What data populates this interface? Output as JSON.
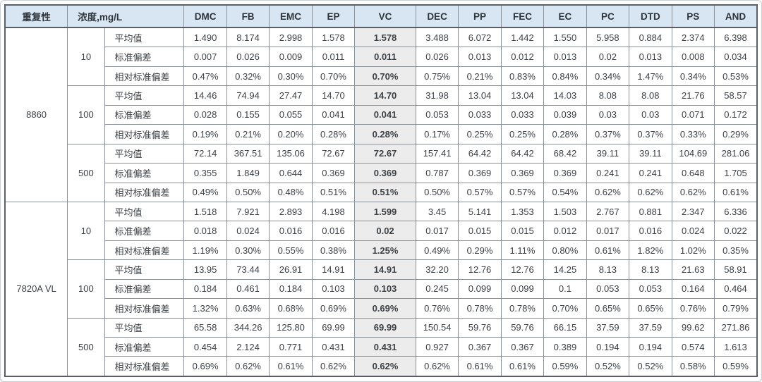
{
  "table": {
    "header": {
      "repeatability_label": "重复性",
      "concentration_label": "浓度,mg/L",
      "analytes": [
        "DMC",
        "FB",
        "EMC",
        "EP",
        "VC",
        "DEC",
        "PP",
        "FEC",
        "EC",
        "PC",
        "DTD",
        "PS",
        "AND"
      ],
      "highlight_analyte": "VC"
    },
    "metric_labels": [
      "平均值",
      "标准偏差",
      "相对标准偏差"
    ],
    "groups": [
      {
        "instrument": "8860",
        "levels": [
          {
            "concentration": "10",
            "rows": [
              [
                "1.490",
                "8.174",
                "2.998",
                "1.578",
                "1.578",
                "3.488",
                "6.072",
                "1.442",
                "1.550",
                "5.958",
                "0.884",
                "2.374",
                "6.398"
              ],
              [
                "0.007",
                "0.026",
                "0.009",
                "0.011",
                "0.011",
                "0.026",
                "0.013",
                "0.012",
                "0.013",
                "0.02",
                "0.013",
                "0.008",
                "0.034"
              ],
              [
                "0.47%",
                "0.32%",
                "0.30%",
                "0.70%",
                "0.70%",
                "0.75%",
                "0.21%",
                "0.83%",
                "0.84%",
                "0.34%",
                "1.47%",
                "0.34%",
                "0.53%"
              ]
            ]
          },
          {
            "concentration": "100",
            "rows": [
              [
                "14.46",
                "74.94",
                "27.47",
                "14.70",
                "14.70",
                "31.98",
                "13.04",
                "13.04",
                "14.03",
                "8.08",
                "8.08",
                "21.76",
                "58.57"
              ],
              [
                "0.028",
                "0.155",
                "0.055",
                "0.041",
                "0.041",
                "0.053",
                "0.033",
                "0.033",
                "0.039",
                "0.03",
                "0.03",
                "0.071",
                "0.172"
              ],
              [
                "0.19%",
                "0.21%",
                "0.20%",
                "0.28%",
                "0.28%",
                "0.17%",
                "0.25%",
                "0.25%",
                "0.28%",
                "0.37%",
                "0.37%",
                "0.33%",
                "0.29%"
              ]
            ]
          },
          {
            "concentration": "500",
            "rows": [
              [
                "72.14",
                "367.51",
                "135.06",
                "72.67",
                "72.67",
                "157.41",
                "64.42",
                "64.42",
                "68.42",
                "39.11",
                "39.11",
                "104.69",
                "281.06"
              ],
              [
                "0.355",
                "1.849",
                "0.644",
                "0.369",
                "0.369",
                "0.787",
                "0.369",
                "0.369",
                "0.369",
                "0.241",
                "0.241",
                "0.648",
                "1.705"
              ],
              [
                "0.49%",
                "0.50%",
                "0.48%",
                "0.51%",
                "0.51%",
                "0.50%",
                "0.57%",
                "0.57%",
                "0.54%",
                "0.62%",
                "0.62%",
                "0.62%",
                "0.61%"
              ]
            ]
          }
        ]
      },
      {
        "instrument": "7820A VL",
        "levels": [
          {
            "concentration": "10",
            "rows": [
              [
                "1.518",
                "7.921",
                "2.893",
                "4.198",
                "1.599",
                "3.45",
                "5.141",
                "1.353",
                "1.503",
                "2.767",
                "0.881",
                "2.347",
                "6.336"
              ],
              [
                "0.018",
                "0.024",
                "0.016",
                "0.016",
                "0.02",
                "0.017",
                "0.015",
                "0.015",
                "0.012",
                "0.017",
                "0.016",
                "0.024",
                "0.022"
              ],
              [
                "1.19%",
                "0.30%",
                "0.55%",
                "0.38%",
                "1.25%",
                "0.49%",
                "0.29%",
                "1.11%",
                "0.80%",
                "0.61%",
                "1.82%",
                "1.02%",
                "0.35%"
              ]
            ]
          },
          {
            "concentration": "100",
            "rows": [
              [
                "13.95",
                "73.44",
                "26.91",
                "14.91",
                "14.91",
                "32.20",
                "12.76",
                "12.76",
                "14.25",
                "8.13",
                "8.13",
                "21.63",
                "58.91"
              ],
              [
                "0.184",
                "0.461",
                "0.184",
                "0.103",
                "0.103",
                "0.245",
                "0.099",
                "0.099",
                "0.1",
                "0.053",
                "0.053",
                "0.164",
                "0.464"
              ],
              [
                "1.32%",
                "0.63%",
                "0.68%",
                "0.69%",
                "0.69%",
                "0.76%",
                "0.78%",
                "0.78%",
                "0.70%",
                "0.65%",
                "0.65%",
                "0.76%",
                "0.79%"
              ]
            ]
          },
          {
            "concentration": "500",
            "rows": [
              [
                "65.58",
                "344.26",
                "125.80",
                "69.99",
                "69.99",
                "150.54",
                "59.76",
                "59.76",
                "66.15",
                "37.59",
                "37.59",
                "99.62",
                "271.86"
              ],
              [
                "0.454",
                "2.124",
                "0.771",
                "0.431",
                "0.431",
                "0.927",
                "0.367",
                "0.367",
                "0.389",
                "0.194",
                "0.194",
                "0.574",
                "1.613"
              ],
              [
                "0.69%",
                "0.62%",
                "0.61%",
                "0.62%",
                "0.62%",
                "0.62%",
                "0.61%",
                "0.61%",
                "0.59%",
                "0.52%",
                "0.52%",
                "0.58%",
                "0.59%"
              ]
            ]
          }
        ]
      }
    ]
  },
  "colors": {
    "header_bg": "#d7e6f2",
    "highlight_bg": "#ececec",
    "inner_border": "#8a9097",
    "outer_border": "#595f66",
    "text": "#3c4146"
  },
  "layout": {
    "col_widths": {
      "instrument": 88,
      "concentration": 52,
      "metric": 112,
      "analyte": 60,
      "highlight_analyte": 86
    }
  }
}
